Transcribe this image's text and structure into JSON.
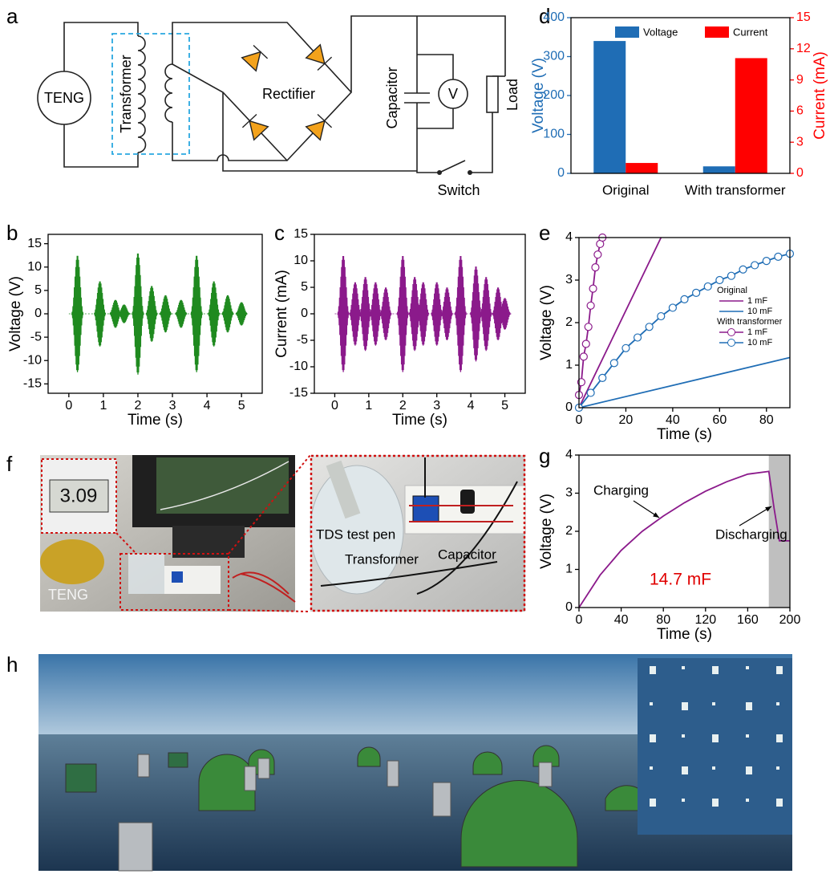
{
  "panel_labels": [
    "a",
    "b",
    "c",
    "d",
    "e",
    "f",
    "g",
    "h"
  ],
  "circuit": {
    "labels": [
      "TENG",
      "Transformer",
      "Rectifier",
      "Capacitor",
      "V",
      "Load",
      "Switch"
    ]
  },
  "photo": {
    "display": "3.09",
    "labels": [
      "TENG",
      "TDS test pen",
      "Transformer",
      "Capacitor"
    ]
  },
  "chart_data": [
    {
      "type": "waveform",
      "ylabel": "Voltage (V)",
      "xlabel": "Time (s)",
      "color": "#1f8a1f",
      "x": [
        0.25,
        0.9,
        1.35,
        1.6,
        2.0,
        2.4,
        2.8,
        3.25,
        3.7,
        4.2,
        4.6,
        5.0
      ],
      "values": [
        12.5,
        7,
        3,
        2,
        13,
        6,
        4,
        3,
        12.5,
        7,
        4,
        2.5
      ],
      "xlim": [
        -0.6,
        5.6
      ],
      "xticks": [
        0,
        1,
        2,
        3,
        4,
        5
      ],
      "ylim": [
        -17,
        17
      ],
      "yticks": [
        -15,
        -10,
        -5,
        0,
        5,
        10,
        15
      ]
    },
    {
      "type": "waveform",
      "ylabel": "Current (mA)",
      "xlabel": "Time (s)",
      "color": "#8b1a8b",
      "x": [
        0.25,
        0.6,
        0.9,
        1.2,
        1.5,
        2.0,
        2.35,
        2.6,
        3.0,
        3.3,
        3.7,
        4.15,
        4.45,
        4.8,
        5.0
      ],
      "values": [
        11,
        6,
        7,
        6,
        5,
        11,
        7,
        6,
        6,
        5,
        11,
        9,
        7,
        5,
        3
      ],
      "xlim": [
        -0.6,
        5.6
      ],
      "xticks": [
        0,
        1,
        2,
        3,
        4,
        5
      ],
      "ylim": [
        -15,
        15
      ],
      "yticks": [
        -15,
        -10,
        -5,
        0,
        5,
        10,
        15
      ]
    },
    {
      "type": "bar",
      "ylabel": "Voltage (V)",
      "y2label": "Current (mA)",
      "categories": [
        "Original",
        "With transformer"
      ],
      "series": [
        {
          "name": "Voltage",
          "color": "#1f6db5",
          "values": [
            340,
            18
          ]
        },
        {
          "name": "Current",
          "color": "#ff0000",
          "values": [
            1.0,
            11.1
          ],
          "axis": "y2"
        }
      ],
      "ylim": [
        0,
        400
      ],
      "yticks": [
        0,
        100,
        200,
        300,
        400
      ],
      "y2lim": [
        0,
        15
      ],
      "y2ticks": [
        0,
        3,
        6,
        9,
        12,
        15
      ]
    },
    {
      "type": "line",
      "ylabel": "Voltage (V)",
      "xlabel": "Time (s)",
      "xlim": [
        0,
        90
      ],
      "xticks": [
        0,
        20,
        40,
        60,
        80
      ],
      "ylim": [
        0,
        4
      ],
      "yticks": [
        0,
        1,
        2,
        3,
        4
      ],
      "series_groups": [
        {
          "name": "Original",
          "series": [
            {
              "name": "1 mF",
              "color": "#8b1a8b",
              "x": [
                0,
                35
              ],
              "values": [
                0,
                4
              ]
            },
            {
              "name": "10 mF",
              "color": "#1f6db5",
              "x": [
                0,
                90
              ],
              "values": [
                0,
                1.18
              ]
            }
          ]
        },
        {
          "name": "With transformer",
          "series": [
            {
              "name": "1 mF",
              "color": "#8b1a8b",
              "marker": "circle",
              "x": [
                0,
                1,
                2,
                3,
                4,
                5,
                6,
                7,
                8,
                9,
                10
              ],
              "values": [
                0.3,
                0.6,
                1.2,
                1.5,
                1.9,
                2.4,
                2.8,
                3.3,
                3.6,
                3.85,
                4.0
              ]
            },
            {
              "name": "10 mF",
              "color": "#1f6db5",
              "marker": "circle",
              "x": [
                0,
                5,
                10,
                15,
                20,
                25,
                30,
                35,
                40,
                45,
                50,
                55,
                60,
                65,
                70,
                75,
                80,
                85,
                90
              ],
              "values": [
                0,
                0.35,
                0.7,
                1.05,
                1.4,
                1.65,
                1.9,
                2.15,
                2.35,
                2.55,
                2.7,
                2.85,
                3.0,
                3.1,
                3.25,
                3.35,
                3.45,
                3.55,
                3.62
              ]
            }
          ]
        }
      ]
    },
    {
      "type": "line",
      "ylabel": "Voltage (V)",
      "xlabel": "Time (s)",
      "xlim": [
        0,
        200
      ],
      "xticks": [
        0,
        40,
        80,
        120,
        160,
        200
      ],
      "ylim": [
        0,
        4
      ],
      "yticks": [
        0,
        1,
        2,
        3,
        4
      ],
      "shaded_x": [
        180,
        200
      ],
      "shade_color": "#bfbfbf",
      "series_groups": [
        {
          "series": [
            {
              "color": "#8b1a8b",
              "x": [
                0,
                20,
                40,
                60,
                80,
                100,
                120,
                140,
                160,
                180,
                185,
                190,
                200
              ],
              "values": [
                0,
                0.85,
                1.5,
                2.0,
                2.4,
                2.75,
                3.05,
                3.3,
                3.5,
                3.57,
                2.6,
                1.75,
                1.75
              ]
            }
          ]
        }
      ],
      "annotations": [
        "Charging",
        "Discharging",
        "14.7 mF"
      ]
    }
  ]
}
